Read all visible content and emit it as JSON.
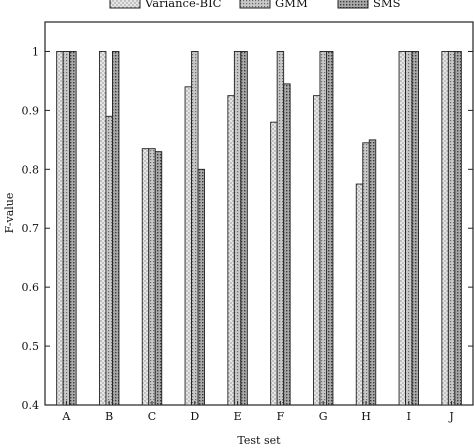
{
  "chart_data": {
    "type": "bar",
    "title": "",
    "xlabel": "Test set",
    "ylabel": "F-value",
    "ylim": [
      0.4,
      1.05
    ],
    "yticks": [
      0.4,
      0.5,
      0.6,
      0.7,
      0.8,
      0.9,
      1
    ],
    "ytick_labels": [
      "0.4",
      "0.5",
      "0.6",
      "0.7",
      "0.8",
      "0.9",
      "1"
    ],
    "grid": false,
    "legend_position": "top",
    "categories": [
      "A",
      "B",
      "C",
      "D",
      "E",
      "F",
      "G",
      "H",
      "I",
      "J"
    ],
    "series": [
      {
        "name": "Variance-BIC",
        "values": [
          1.0,
          1.0,
          0.835,
          0.94,
          0.925,
          0.88,
          0.925,
          0.775,
          1.0,
          1.0
        ]
      },
      {
        "name": "GMM",
        "values": [
          1.0,
          0.89,
          0.835,
          1.0,
          1.0,
          1.0,
          1.0,
          0.845,
          1.0,
          1.0
        ]
      },
      {
        "name": "SMS",
        "values": [
          1.0,
          1.0,
          0.83,
          0.8,
          1.0,
          0.945,
          1.0,
          0.85,
          1.0,
          1.0
        ]
      }
    ],
    "colors": [
      "#d9d9d9",
      "#bdbdbd",
      "#9a9a9a"
    ]
  }
}
